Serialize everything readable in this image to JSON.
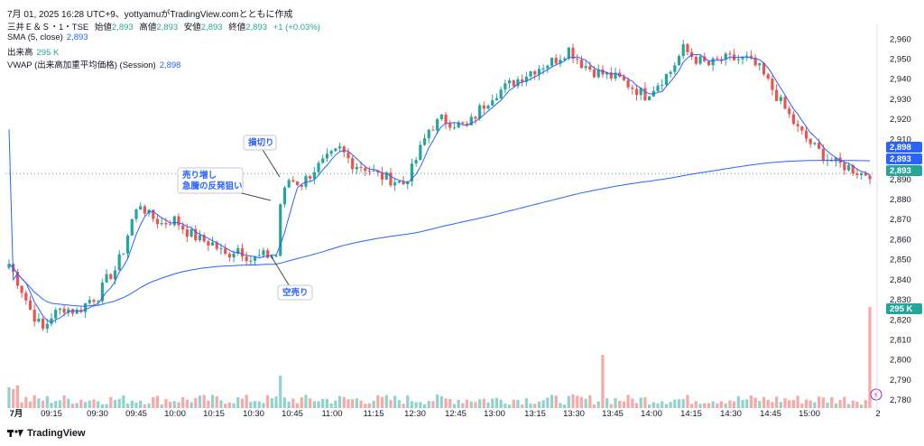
{
  "header": {
    "line": "7月 01, 2025 16:28 UTC+9、yottyamuがTradingView.comとともに作成"
  },
  "legend": {
    "symbol": "三井Ｅ＆Ｓ・1・TSE",
    "open_label": "始値",
    "open": "2,893",
    "high_label": "高値",
    "high": "2,893",
    "low_label": "安値",
    "low": "2,893",
    "close_label": "終値",
    "close": "2,893",
    "change": "+1 (+0.03%)",
    "sma_label": "SMA (5, close)",
    "sma_value": "2,893",
    "volume_label": "出来高",
    "volume_value": "295 K",
    "vwap_label": "VWAP (出来高加重平均価格) (Session)",
    "vwap_value": "2,898"
  },
  "annotations": [
    {
      "text": "損切り"
    },
    {
      "text": "売り増し"
    },
    {
      "text": "急騰の反発狙い"
    },
    {
      "text": "空売り"
    }
  ],
  "price_tags": {
    "vwap": "2,898",
    "sma": "2,893",
    "last": "2,893",
    "volume": "295 K"
  },
  "footer": {
    "brand": "TradingView"
  },
  "colors": {
    "up": "#26a69a",
    "down": "#ef5350",
    "vwap": "#2962ff",
    "sma": "#2962ff"
  },
  "chart_data": {
    "type": "candlestick",
    "y_axis": {
      "range": [
        2776,
        2966
      ],
      "ticks": [
        2780,
        2790,
        2800,
        2810,
        2820,
        2830,
        2840,
        2850,
        2860,
        2870,
        2880,
        2890,
        2900,
        2910,
        2920,
        2930,
        2940,
        2950,
        2960
      ]
    },
    "x_axis": {
      "ticks": [
        "7月",
        "09:15",
        "09:30",
        "09:45",
        "10:00",
        "10:15",
        "10:30",
        "10:45",
        "11:00",
        "11:15",
        "12:30",
        "12:45",
        "13:00",
        "13:15",
        "13:30",
        "13:45",
        "14:00",
        "14:15",
        "14:30",
        "14:45",
        "15:00",
        "2"
      ]
    },
    "series_path": [
      [
        0,
        2848
      ],
      [
        3,
        2835
      ],
      [
        5,
        2825
      ],
      [
        8,
        2815
      ],
      [
        10,
        2822
      ],
      [
        13,
        2826
      ],
      [
        16,
        2824
      ],
      [
        19,
        2830
      ],
      [
        21,
        2832
      ],
      [
        23,
        2840
      ],
      [
        25,
        2845
      ],
      [
        27,
        2855
      ],
      [
        29,
        2870
      ],
      [
        31,
        2878
      ],
      [
        33,
        2872
      ],
      [
        36,
        2868
      ],
      [
        39,
        2870
      ],
      [
        42,
        2864
      ],
      [
        45,
        2860
      ],
      [
        48,
        2858
      ],
      [
        51,
        2852
      ],
      [
        54,
        2856
      ],
      [
        57,
        2850
      ],
      [
        60,
        2852
      ],
      [
        63,
        2852
      ],
      [
        64,
        2878
      ],
      [
        66,
        2890
      ],
      [
        69,
        2888
      ],
      [
        72,
        2895
      ],
      [
        75,
        2900
      ],
      [
        78,
        2905
      ],
      [
        81,
        2898
      ],
      [
        84,
        2896
      ],
      [
        87,
        2892
      ],
      [
        90,
        2890
      ],
      [
        93,
        2888
      ],
      [
        95,
        2895
      ],
      [
        97,
        2905
      ],
      [
        99,
        2915
      ],
      [
        102,
        2920
      ],
      [
        105,
        2918
      ],
      [
        108,
        2916
      ],
      [
        111,
        2925
      ],
      [
        114,
        2932
      ],
      [
        117,
        2936
      ],
      [
        120,
        2940
      ],
      [
        123,
        2944
      ],
      [
        126,
        2947
      ],
      [
        129,
        2950
      ],
      [
        132,
        2955
      ],
      [
        135,
        2948
      ],
      [
        138,
        2944
      ],
      [
        141,
        2942
      ],
      [
        144,
        2940
      ],
      [
        147,
        2936
      ],
      [
        150,
        2932
      ],
      [
        153,
        2938
      ],
      [
        156,
        2944
      ],
      [
        159,
        2955
      ],
      [
        162,
        2950
      ],
      [
        165,
        2947
      ],
      [
        168,
        2950
      ],
      [
        171,
        2950
      ],
      [
        174,
        2950
      ],
      [
        177,
        2945
      ],
      [
        180,
        2935
      ],
      [
        183,
        2925
      ],
      [
        186,
        2915
      ],
      [
        189,
        2908
      ],
      [
        192,
        2902
      ],
      [
        195,
        2898
      ],
      [
        198,
        2896
      ],
      [
        201,
        2893
      ],
      [
        203,
        2893
      ]
    ],
    "volume_tag": "295 K",
    "vwap_last": 2898,
    "sma_last": 2893,
    "last_price": 2893,
    "volume_spikes": [
      {
        "x": 64,
        "volume": 95
      },
      {
        "x": 140,
        "volume": 155
      },
      {
        "x": 203,
        "volume": 295
      }
    ]
  }
}
